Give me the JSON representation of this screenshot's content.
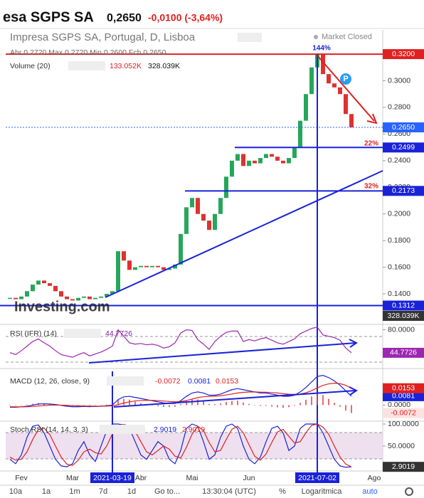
{
  "header": {
    "title": "esa SGPS SA",
    "price": "0,2650",
    "change": "-0,0100 (-3,64%)"
  },
  "toolbar": [
    "10a",
    "1a",
    "1m",
    "7d",
    "1d",
    "Go to...",
    "13:30:04 (UTC)",
    "%",
    "Logaritmica",
    "auto"
  ],
  "chart_data": [
    {
      "type": "candlestick",
      "title": "Impresa SGPS SA, Portugal, D, Lisboa",
      "ohlc_legend": "Abr 0.2720 Max 0.2720 Min 0.2600 Fch 0.2650",
      "status": "Market Closed",
      "volume_legend": "Volume (20)",
      "volume_values": [
        "133.052K",
        "328.039K"
      ],
      "watermark": "Investing.com",
      "marker": "P",
      "annotations": [
        "144%",
        "22%",
        "32%"
      ],
      "categories": [
        null,
        null,
        "Fev",
        null,
        null,
        null,
        null,
        null,
        null,
        null,
        null,
        "Mar",
        null,
        null,
        null,
        null,
        null,
        null,
        "2021-03-19",
        null,
        null,
        null,
        null,
        "Abr",
        null,
        null,
        null,
        null,
        null,
        null,
        null,
        null,
        "Mai",
        null,
        null,
        null,
        null,
        null,
        null,
        null,
        null,
        null,
        "Jun",
        null,
        null,
        null,
        null,
        null,
        null,
        null,
        null,
        null,
        null,
        null,
        "2021-07-02",
        null,
        null,
        null,
        null,
        null,
        null,
        null,
        null,
        null,
        "Ago"
      ],
      "close": [
        0.137,
        0.136,
        0.138,
        0.142,
        0.147,
        0.15,
        0.148,
        0.146,
        0.142,
        0.138,
        0.136,
        0.135,
        0.137,
        0.138,
        0.136,
        0.137,
        0.138,
        0.14,
        0.142,
        0.172,
        0.165,
        0.158,
        0.16,
        0.161,
        0.16,
        0.161,
        0.16,
        0.158,
        0.159,
        0.162,
        0.185,
        0.205,
        0.212,
        0.2,
        0.195,
        0.188,
        0.2,
        0.212,
        0.228,
        0.24,
        0.245,
        0.236,
        0.24,
        0.238,
        0.242,
        0.245,
        0.243,
        0.24,
        0.238,
        0.242,
        0.25,
        0.27,
        0.29,
        0.31,
        0.32,
        0.305,
        0.298,
        0.295,
        0.29,
        0.275,
        0.265,
        null,
        null,
        null,
        null
      ],
      "up_color": "#26a65b",
      "down_color": "#e03030",
      "ylim": [
        0.1176,
        0.3382
      ],
      "yticks": [
        {
          "value": 0.3,
          "label": "0.3000"
        },
        {
          "value": 0.28,
          "label": "0.2800"
        },
        {
          "value": 0.26,
          "label": "0.2600"
        },
        {
          "value": 0.24,
          "label": "0.2400"
        },
        {
          "value": 0.22,
          "label": "0.2200"
        },
        {
          "value": 0.2,
          "label": "0.2000"
        },
        {
          "value": 0.18,
          "label": "0.1800"
        },
        {
          "value": 0.16,
          "label": "0.1600"
        },
        {
          "value": 0.14,
          "label": "0.1400"
        }
      ],
      "price_lines": [
        {
          "value": 0.32,
          "label": "0.3200",
          "color": "#e02020"
        },
        {
          "value": 0.265,
          "label": "0.2650",
          "color": "#2962ff"
        },
        {
          "value": 0.2499,
          "label": "0.2499",
          "color": "#1a22d8"
        },
        {
          "value": 0.2173,
          "label": "0.2173",
          "color": "#1a22d8"
        },
        {
          "value": 0.1312,
          "label": "0.1312",
          "color": "#1a22d8"
        }
      ]
    },
    {
      "type": "line",
      "title": "RSI (IFR) (14)",
      "ylim": [
        24,
        86
      ],
      "yticks": [
        {
          "value": 80,
          "label": "80.0000"
        }
      ],
      "series": [
        {
          "color": "#9c27b0",
          "values": [
            45,
            42,
            48,
            55,
            62,
            66,
            60,
            55,
            48,
            42,
            40,
            38,
            42,
            45,
            40,
            43,
            46,
            50,
            55,
            80,
            70,
            60,
            58,
            59,
            57,
            58,
            56,
            52,
            54,
            60,
            75,
            80,
            79,
            65,
            58,
            50,
            62,
            70,
            76,
            78,
            78,
            62,
            65,
            63,
            66,
            68,
            64,
            60,
            58,
            62,
            66,
            74,
            78,
            82,
            84,
            72,
            70,
            68,
            64,
            52,
            44.7726,
            null,
            null,
            null,
            null
          ]
        }
      ]
    },
    {
      "type": "macd",
      "title": "MACD (12, 26, close, 9)",
      "ylim": [
        -0.012,
        0.03
      ],
      "yticks": [
        {
          "value": 0,
          "label": "0.0000"
        }
      ],
      "series": [
        {
          "color": "#1a22d8",
          "values": [
            -0.002,
            -0.002,
            -0.0015,
            -0.001,
            0,
            0.001,
            0.0012,
            0.001,
            0.0005,
            -0.0002,
            -0.001,
            -0.0015,
            -0.0015,
            -0.0012,
            -0.0014,
            -0.0013,
            -0.001,
            -0.0005,
            0,
            0.005,
            0.0075,
            0.008,
            0.007,
            0.006,
            0.005,
            0.004,
            0.003,
            0.002,
            0.0015,
            0.0015,
            0.004,
            0.008,
            0.011,
            0.012,
            0.011,
            0.009,
            0.009,
            0.01,
            0.012,
            0.014,
            0.015,
            0.014,
            0.013,
            0.012,
            0.011,
            0.011,
            0.01,
            0.009,
            0.008,
            0.008,
            0.009,
            0.012,
            0.016,
            0.021,
            0.026,
            0.027,
            0.025,
            0.022,
            0.018,
            0.013,
            0.0081,
            null,
            null,
            null,
            null
          ]
        },
        {
          "color": "#e02020",
          "values": [
            -0.0015,
            -0.0016,
            -0.0016,
            -0.0015,
            -0.0012,
            -0.0008,
            -0.0004,
            -0.0001,
            0,
            0,
            -0.0002,
            -0.0005,
            -0.0007,
            -0.0008,
            -0.0009,
            -0.001,
            -0.001,
            -0.0009,
            -0.0007,
            0.0004,
            0.0018,
            0.003,
            0.0038,
            0.0042,
            0.0044,
            0.0043,
            0.0041,
            0.0037,
            0.0033,
            0.003,
            0.0032,
            0.0042,
            0.0055,
            0.0068,
            0.0076,
            0.0079,
            0.0081,
            0.0085,
            0.0092,
            0.0101,
            0.011,
            0.0116,
            0.0119,
            0.012,
            0.0118,
            0.0117,
            0.0114,
            0.011,
            0.0104,
            0.0099,
            0.0097,
            0.01,
            0.0112,
            0.0131,
            0.0157,
            0.0179,
            0.0193,
            0.0199,
            0.0195,
            0.018,
            0.0153,
            null,
            null,
            null,
            null
          ]
        }
      ],
      "histogram": {
        "color": "#e04848",
        "values": [
          -0.0005,
          -0.0004,
          0.0001,
          0.0005,
          0.0012,
          0.0018,
          0.0016,
          0.0011,
          0.0005,
          -0.0002,
          -0.0008,
          -0.001,
          -0.0008,
          -0.0004,
          -0.0005,
          -0.0003,
          0,
          0.0004,
          0.0007,
          0.0046,
          0.0057,
          0.005,
          0.0032,
          0.0018,
          0.0006,
          -0.0003,
          -0.0011,
          -0.0017,
          -0.0018,
          -0.0015,
          0.0008,
          0.0038,
          0.0055,
          0.0052,
          0.0034,
          0.0011,
          0.0009,
          0.0015,
          0.0028,
          0.0039,
          0.004,
          0.0024,
          0.0011,
          0,
          -0.0008,
          -0.0007,
          -0.0014,
          -0.002,
          -0.0024,
          -0.0019,
          -0.0007,
          0.002,
          0.0048,
          0.0079,
          0.0103,
          0.0091,
          0.0057,
          0.0021,
          -0.0015,
          -0.005,
          -0.0072,
          null,
          null,
          null,
          null
        ]
      }
    },
    {
      "type": "line",
      "title": "Stoch RSI (14, 14, 3, 3)",
      "ylim": [
        0,
        100
      ],
      "yticks": [
        {
          "value": 100,
          "label": "100.0000"
        },
        {
          "value": 50,
          "label": "50.0000"
        }
      ],
      "series": [
        {
          "color": "#1a22d8",
          "values": [
            20,
            10,
            30,
            70,
            95,
            98,
            80,
            50,
            20,
            5,
            3,
            10,
            40,
            60,
            30,
            15,
            50,
            85,
            100,
            100,
            98,
            90,
            60,
            30,
            20,
            40,
            60,
            50,
            20,
            10,
            40,
            90,
            100,
            95,
            60,
            20,
            30,
            70,
            95,
            100,
            90,
            50,
            20,
            10,
            25,
            60,
            90,
            95,
            80,
            40,
            50,
            90,
            100,
            100,
            100,
            80,
            50,
            20,
            5,
            2,
            2.9019,
            null,
            null,
            null,
            null
          ]
        },
        {
          "color": "#e02020",
          "values": [
            25,
            18,
            20,
            37,
            65,
            88,
            91,
            76,
            50,
            25,
            9,
            6,
            18,
            37,
            43,
            35,
            32,
            50,
            78,
            95,
            99,
            96,
            83,
            60,
            37,
            30,
            40,
            50,
            43,
            27,
            23,
            47,
            77,
            95,
            85,
            58,
            37,
            40,
            65,
            88,
            95,
            80,
            53,
            27,
            18,
            32,
            58,
            82,
            88,
            72,
            57,
            60,
            80,
            97,
            100,
            93,
            77,
            50,
            25,
            9,
            2.9019,
            null,
            null,
            null,
            null
          ]
        }
      ]
    }
  ]
}
